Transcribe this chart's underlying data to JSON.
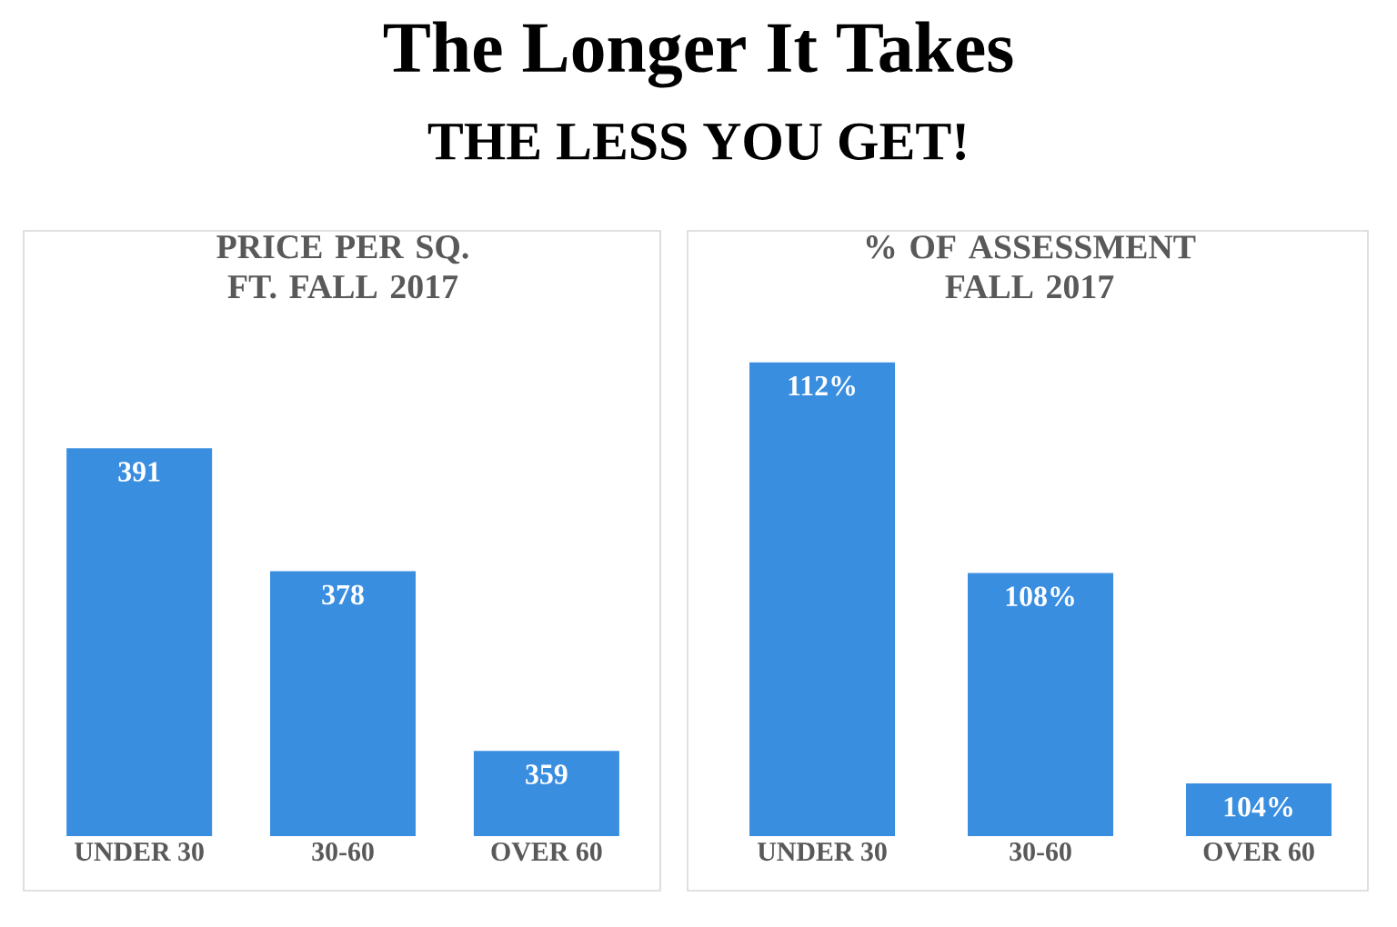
{
  "chart_data": [
    {
      "type": "bar",
      "title": "PRICE PER SQ. FT. FALL 2017",
      "categories": [
        "UNDER 30",
        "30-60",
        "OVER 60"
      ],
      "values": [
        391,
        378,
        359
      ],
      "color": "#3a8ee0",
      "ylim": [
        350,
        414
      ],
      "tick_labels": "x",
      "data_labels": true,
      "annotations": [
        "The Longer It Takes",
        "THE LESS YOU GET!"
      ]
    },
    {
      "type": "bar",
      "title": "% OF ASSESSMENT FALL 2017",
      "categories": [
        "UNDER 30",
        "30-60",
        "OVER 60"
      ],
      "values": [
        112,
        108,
        104
      ],
      "value_labels": [
        "112%",
        "108%",
        "104%"
      ],
      "color": "#3a8ee0",
      "ylim": [
        103,
        114.5
      ],
      "tick_labels": "x"
    }
  ]
}
